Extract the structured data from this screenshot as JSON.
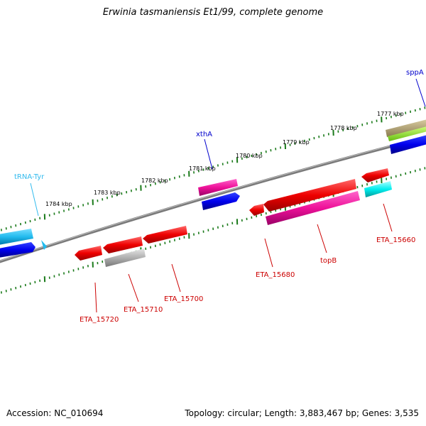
{
  "title": "Erwinia tasmaniensis Et1/99, complete genome",
  "footer": {
    "accession": "Accession: NC_010694",
    "stats": "Topology: circular; Length: 3,883,467 bp; Genes: 3,535"
  },
  "ruler": {
    "unit": "kbp",
    "labels": [
      "1777 kbp",
      "1778 kbp",
      "1779 kbp",
      "1780 kbp",
      "1781 kbp",
      "1782 kbp",
      "1783 kbp",
      "1784 kbp"
    ]
  },
  "genes": [
    {
      "name": "sppA",
      "color": "#0000cc"
    },
    {
      "name": "xthA",
      "color": "#0000cc"
    },
    {
      "name": "tRNA-Tyr",
      "color": "#33bbee"
    },
    {
      "name": "ETA_15660",
      "color": "#cc0000"
    },
    {
      "name": "topB",
      "color": "#cc0000"
    },
    {
      "name": "ETA_15680",
      "color": "#cc0000"
    },
    {
      "name": "ETA_15700",
      "color": "#cc0000"
    },
    {
      "name": "ETA_15710",
      "color": "#cc0000"
    },
    {
      "name": "ETA_15720",
      "color": "#cc0000"
    }
  ],
  "colors": {
    "backbone": "#7a7a7a",
    "ticks": "#1a7a1a",
    "forward_cds": "#0000ee",
    "forward_rna": "#22bbee",
    "reverse_cds": "#ee0000",
    "pink_track": "#ee1199",
    "cyan_track": "#00eeee",
    "gray_track": "#b0b0b0",
    "olive_track": "#b0a070",
    "lime_track": "#99ee33"
  }
}
